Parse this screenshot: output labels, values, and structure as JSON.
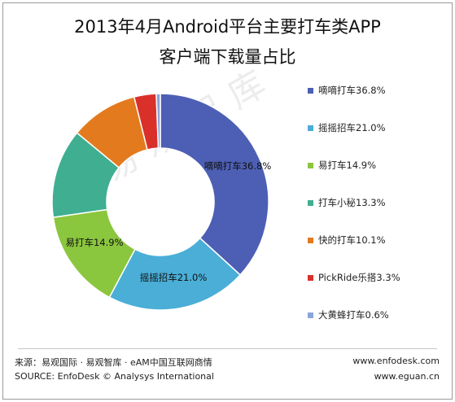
{
  "title_line1": "2013年4月Android平台主要打车类APP",
  "title_line2": "客户端下载量占比",
  "watermark": "易观智库",
  "chart_data": {
    "type": "pie",
    "title": "2013年4月Android平台主要打车类APP客户端下载量占比",
    "series": [
      {
        "name": "嘀嘀打车",
        "value": 36.8,
        "color": "#4d5fb4",
        "legend": "嘀嘀打车36.8%",
        "label": "嘀嘀打车36.8%"
      },
      {
        "name": "摇摇招车",
        "value": 21.0,
        "color": "#4aaed7",
        "legend": "摇摇招车21.0%",
        "label": "摇摇招车21.0%"
      },
      {
        "name": "易打车",
        "value": 14.9,
        "color": "#8bc63f",
        "legend": "易打车14.9%",
        "label": "易打车14.9%"
      },
      {
        "name": "打车小秘",
        "value": 13.3,
        "color": "#3fae91",
        "legend": "打车小秘13.3%",
        "label": ""
      },
      {
        "name": "快的打车",
        "value": 10.1,
        "color": "#e47a1e",
        "legend": "快的打车10.1%",
        "label": ""
      },
      {
        "name": "PickRide乐搭",
        "value": 3.3,
        "color": "#d9312a",
        "legend": "PickRide乐搭3.3%",
        "label": ""
      },
      {
        "name": "大黄蜂打车",
        "value": 0.6,
        "color": "#8aa5d9",
        "legend": "大黄蜂打车0.6%",
        "label": ""
      }
    ],
    "legend_position": "right"
  },
  "footer": {
    "source_cn": "来源：易观国际 · 易观智库 · eAM中国互联网商情",
    "source_en": "SOURCE: EnfoDesk © Analysys International",
    "url1": "www.enfodesk.com",
    "url2": "www.eguan.cn"
  }
}
